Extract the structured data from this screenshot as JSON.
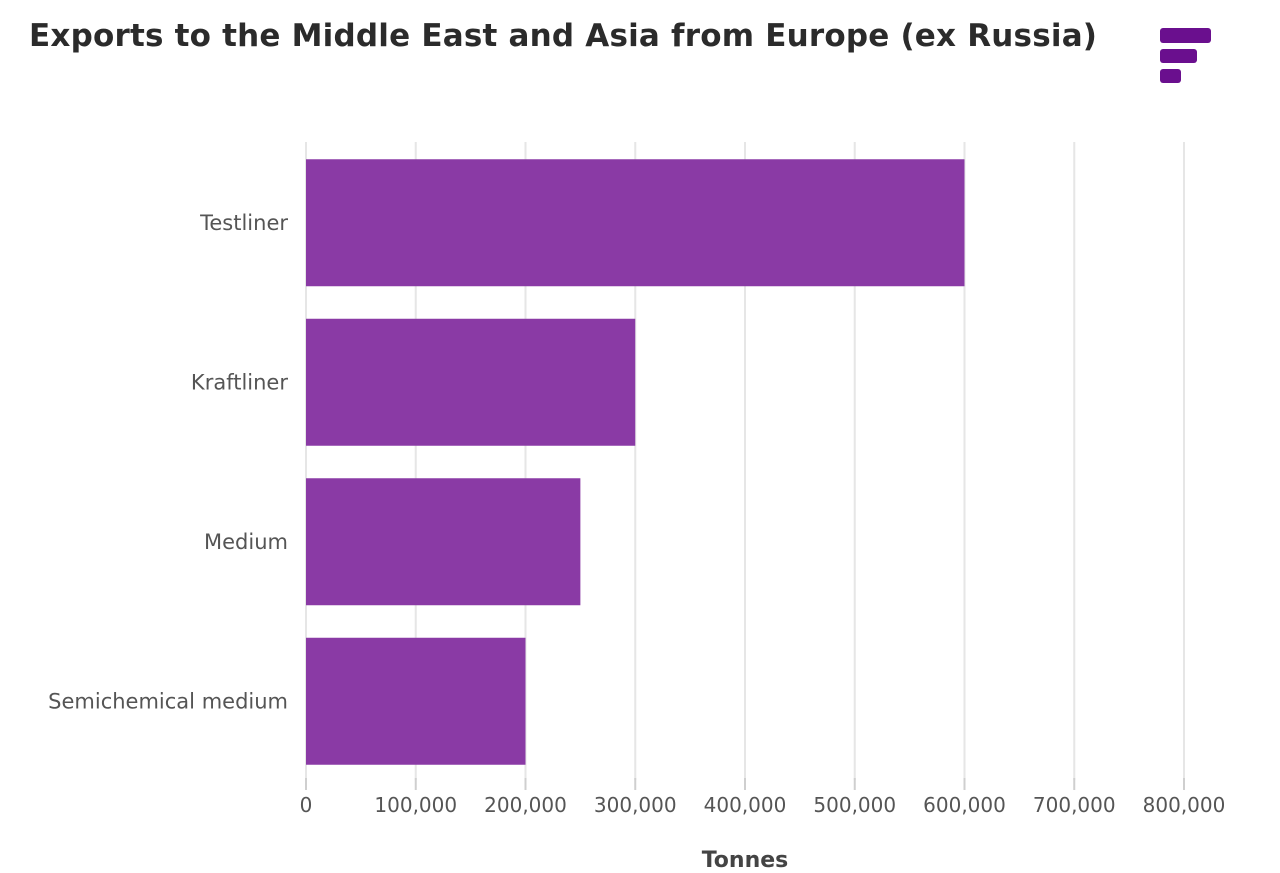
{
  "brand": {
    "accent": "#6a0f8e",
    "logo_icon": "brand-bars-icon"
  },
  "chart_data": {
    "type": "bar",
    "orientation": "horizontal",
    "title": "Exports to the Middle East and Asia from Europe (ex Russia)",
    "xlabel": "Tonnes",
    "ylabel": "",
    "categories": [
      "Testliner",
      "Kraftliner",
      "Medium",
      "Semichemical medium"
    ],
    "values": [
      600000,
      300000,
      250000,
      200000
    ],
    "xlim": [
      0,
      800000
    ],
    "xticks": [
      0,
      100000,
      200000,
      300000,
      400000,
      500000,
      600000,
      700000,
      800000
    ],
    "xtick_labels": [
      "0",
      "100,000",
      "200,000",
      "300,000",
      "400,000",
      "500,000",
      "600,000",
      "700,000",
      "800,000"
    ],
    "grid": "vertical",
    "legend": "none",
    "bar_color": "#8a3aa5",
    "grid_color": "#e6e6e6"
  }
}
